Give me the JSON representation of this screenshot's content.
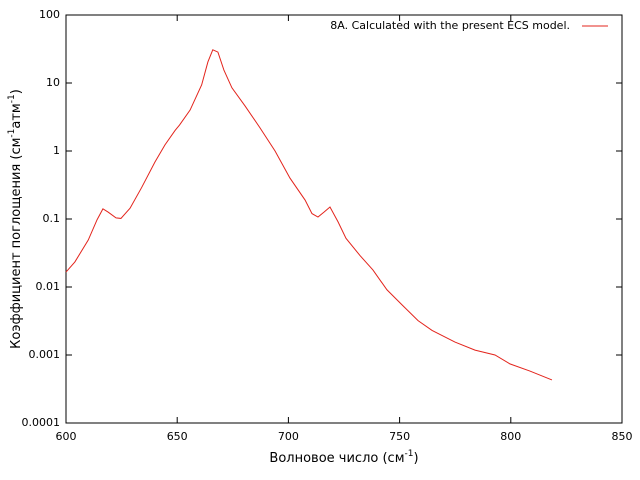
{
  "chart_data": {
    "type": "line",
    "xlabel": [
      "Волновое число (см",
      "-1",
      ")"
    ],
    "ylabel": [
      "Коэффициент поглощения (см",
      "-1",
      "атм",
      "-1",
      ")"
    ],
    "x": [
      600,
      604,
      610,
      614,
      616.6,
      619,
      622.5,
      624.7,
      628.8,
      634,
      640,
      644.5,
      649,
      651,
      655.8,
      661,
      663.8,
      666,
      668.3,
      671,
      674.6,
      680.5,
      687.2,
      694,
      700.7,
      707.5,
      710.6,
      713.3,
      716,
      718.7,
      722.3,
      725.9,
      732.2,
      738,
      744.3,
      751.5,
      758.3,
      764.6,
      774.9,
      783.9,
      792.9,
      799.6,
      808.6,
      818.5
    ],
    "series": [
      {
        "name": "8A. Calculated with the present ECS model.",
        "color": "#e3241c",
        "values": [
          0.0166,
          0.0234,
          0.049,
          0.098,
          0.141,
          0.126,
          0.104,
          0.102,
          0.144,
          0.29,
          0.69,
          1.23,
          2.0,
          2.4,
          4.0,
          9.4,
          20.4,
          30.8,
          28.5,
          15.5,
          8.5,
          4.6,
          2.2,
          1.0,
          0.4,
          0.19,
          0.12,
          0.107,
          0.126,
          0.15,
          0.091,
          0.052,
          0.029,
          0.0178,
          0.0091,
          0.0053,
          0.0032,
          0.0023,
          0.00155,
          0.00118,
          0.001,
          0.00074,
          0.00058,
          0.00043
        ]
      }
    ],
    "xlim": [
      600,
      850
    ],
    "xticks": [
      600,
      650,
      700,
      750,
      800,
      850
    ],
    "ylim": [
      0.0001,
      100
    ],
    "yticks": [
      0.0001,
      0.001,
      0.01,
      0.1,
      1,
      10,
      100
    ],
    "ylog": true,
    "legend": "top-right"
  }
}
